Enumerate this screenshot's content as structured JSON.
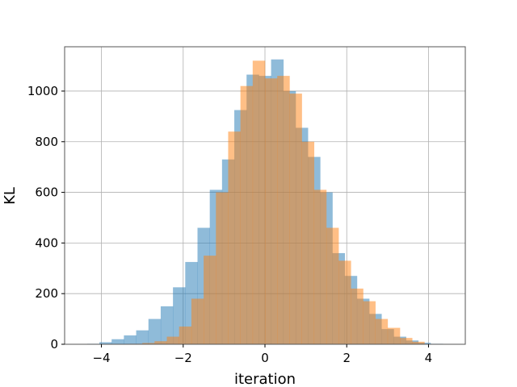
{
  "chart_data": {
    "type": "bar",
    "title": "",
    "xlabel": "iteration",
    "ylabel": "KL",
    "xlim": [
      -4.9,
      4.9
    ],
    "ylim": [
      0,
      1175
    ],
    "grid": true,
    "x_ticks": [
      -4,
      -2,
      0,
      2,
      4
    ],
    "x_tick_labels": [
      "−4",
      "−2",
      "0",
      "2",
      "4"
    ],
    "y_ticks": [
      0,
      200,
      400,
      600,
      800,
      1000
    ],
    "y_tick_labels": [
      "0",
      "200",
      "400",
      "600",
      "800",
      "1000"
    ],
    "series": [
      {
        "color": "#1f77b4",
        "opacity": 0.5,
        "bin_edges": [
          -4.35,
          -4.05,
          -3.75,
          -3.45,
          -3.15,
          -2.85,
          -2.55,
          -2.25,
          -1.95,
          -1.65,
          -1.35,
          -1.05,
          -0.75,
          -0.45,
          -0.15,
          0.15,
          0.45,
          0.75,
          1.05,
          1.35,
          1.65,
          1.95,
          2.25,
          2.55,
          2.85,
          3.15,
          3.45,
          3.75,
          4.05,
          4.35
        ],
        "values": [
          2,
          8,
          20,
          35,
          55,
          100,
          150,
          225,
          325,
          460,
          610,
          730,
          925,
          1065,
          1060,
          1125,
          1000,
          855,
          740,
          600,
          360,
          270,
          180,
          120,
          60,
          30,
          15,
          6,
          2
        ]
      },
      {
        "color": "#ff7f0e",
        "opacity": 0.5,
        "bin_edges": [
          -3.6,
          -3.3,
          -3.0,
          -2.7,
          -2.4,
          -2.1,
          -1.8,
          -1.5,
          -1.2,
          -0.9,
          -0.6,
          -0.3,
          0.0,
          0.3,
          0.6,
          0.9,
          1.2,
          1.5,
          1.8,
          2.1,
          2.4,
          2.7,
          3.0,
          3.3,
          3.6,
          3.9
        ],
        "values": [
          1,
          2,
          5,
          12,
          30,
          70,
          180,
          350,
          600,
          840,
          1020,
          1120,
          1050,
          1060,
          990,
          800,
          610,
          460,
          330,
          220,
          170,
          100,
          65,
          25,
          10
        ]
      }
    ]
  }
}
